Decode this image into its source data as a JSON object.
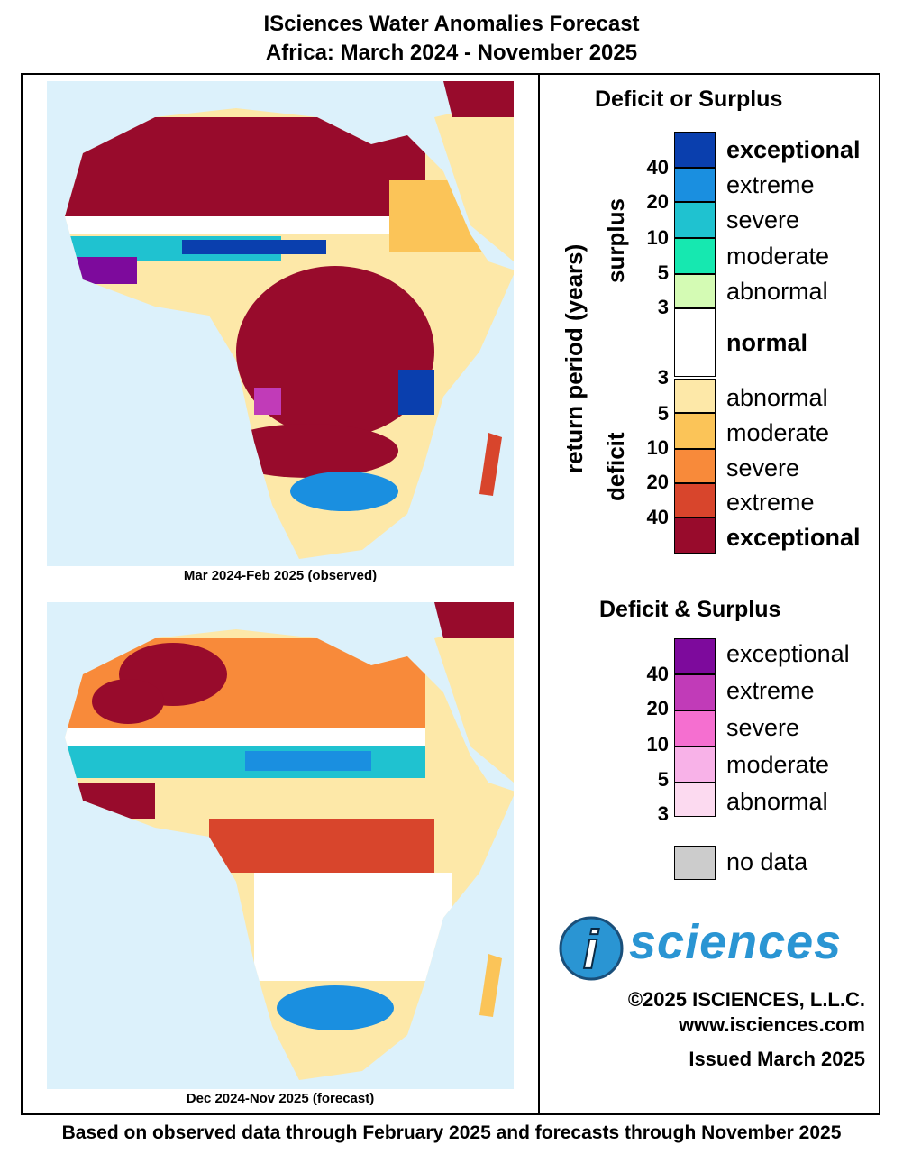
{
  "title": {
    "line1": "ISciences Water Anomalies Forecast",
    "line2": "Africa: March 2024 - November 2025"
  },
  "maps": [
    {
      "caption": "Mar 2024-Feb 2025 (observed)"
    },
    {
      "caption": "Dec 2024-Nov 2025 (forecast)"
    }
  ],
  "legend": {
    "deficit_or_surplus": {
      "heading": "Deficit or Surplus",
      "axis_label": "return period (years)",
      "surplus_label": "surplus",
      "deficit_label": "deficit",
      "items": [
        {
          "label": "exceptional",
          "color": "#0a3fae"
        },
        {
          "label": "extreme",
          "color": "#1a8fe0"
        },
        {
          "label": "severe",
          "color": "#1fc2d0"
        },
        {
          "label": "moderate",
          "color": "#16e8b0"
        },
        {
          "label": "abnormal",
          "color": "#d4fbb4"
        },
        {
          "label": "normal",
          "color": "#ffffff"
        },
        {
          "label": "abnormal",
          "color": "#fde8a8"
        },
        {
          "label": "moderate",
          "color": "#fbc458"
        },
        {
          "label": "severe",
          "color": "#f88a3a"
        },
        {
          "label": "extreme",
          "color": "#d8452c"
        },
        {
          "label": "exceptional",
          "color": "#980b2c"
        }
      ],
      "surplus_ticks": [
        "40",
        "20",
        "10",
        "5",
        "3"
      ],
      "deficit_ticks": [
        "3",
        "5",
        "10",
        "20",
        "40"
      ]
    },
    "deficit_and_surplus": {
      "heading": "Deficit & Surplus",
      "items": [
        {
          "label": "exceptional",
          "color": "#7d0a9c"
        },
        {
          "label": "extreme",
          "color": "#c13bb8"
        },
        {
          "label": "severe",
          "color": "#f56fd0"
        },
        {
          "label": "moderate",
          "color": "#f8b2e8"
        },
        {
          "label": "abnormal",
          "color": "#fcdaf0"
        }
      ],
      "ticks": [
        "40",
        "20",
        "10",
        "5",
        "3"
      ]
    },
    "no_data": {
      "label": "no data",
      "color": "#cccccc"
    }
  },
  "logo": {
    "letter": "i",
    "word": "sciences"
  },
  "credits": {
    "copyright": "©2025 ISCIENCES, L.L.C.",
    "website": "www.isciences.com",
    "issued": "Issued March 2025"
  },
  "footer": "Based on observed data through February 2025 and forecasts through November 2025"
}
